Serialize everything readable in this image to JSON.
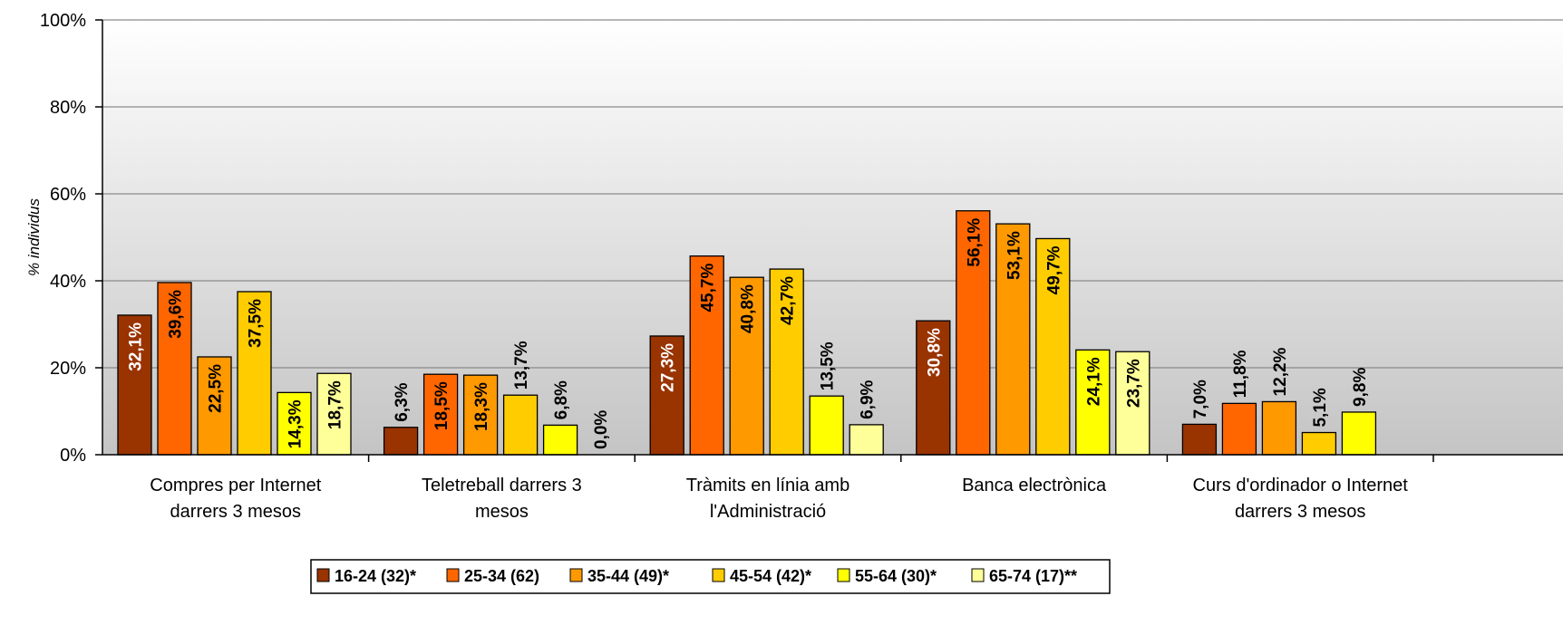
{
  "chart_data": {
    "type": "bar",
    "ylabel": "% individus",
    "ylim": [
      0,
      100
    ],
    "y_ticks": [
      "0%",
      "20%",
      "40%",
      "60%",
      "80%",
      "100%"
    ],
    "grid": true,
    "legend_position": "bottom",
    "categories": [
      [
        "Compres per Internet",
        "darrers 3 mesos"
      ],
      [
        "Teletreball darrers 3",
        "mesos"
      ],
      [
        "Tràmits en línia amb",
        "l'Administració"
      ],
      [
        "Banca electrònica"
      ],
      [
        "Curs d'ordinador o Internet",
        "darrers 3 mesos"
      ]
    ],
    "series": [
      {
        "name": "16-24 (32)*",
        "color": "#993300",
        "label_color": "#ffffff",
        "values": [
          32.1,
          6.3,
          27.3,
          30.8,
          7.0
        ],
        "labels": [
          "32,1%",
          "6,3%",
          "27,3%",
          "30,8%",
          "7,0%"
        ]
      },
      {
        "name": "25-34 (62)",
        "color": "#ff6600",
        "label_color": "#000000",
        "values": [
          39.6,
          18.5,
          45.7,
          56.1,
          11.8
        ],
        "labels": [
          "39,6%",
          "18,5%",
          "45,7%",
          "56,1%",
          "11,8%"
        ]
      },
      {
        "name": "35-44 (49)*",
        "color": "#ff9900",
        "label_color": "#000000",
        "values": [
          22.5,
          18.3,
          40.8,
          53.1,
          12.2
        ],
        "labels": [
          "22,5%",
          "18,3%",
          "40,8%",
          "53,1%",
          "12,2%"
        ]
      },
      {
        "name": "45-54 (42)*",
        "color": "#ffcc00",
        "label_color": "#000000",
        "values": [
          37.5,
          13.7,
          42.7,
          49.7,
          5.1
        ],
        "labels": [
          "37,5%",
          "13,7%",
          "42,7%",
          "49,7%",
          "5,1%"
        ]
      },
      {
        "name": "55-64 (30)*",
        "color": "#ffff00",
        "label_color": "#000000",
        "values": [
          14.3,
          6.8,
          13.5,
          24.1,
          9.8
        ],
        "labels": [
          "14,3%",
          "6,8%",
          "13,5%",
          "24,1%",
          "9,8%"
        ]
      },
      {
        "name": "65-74 (17)**",
        "color": "#ffff99",
        "label_color": "#000000",
        "values": [
          18.7,
          0.0,
          6.9,
          23.7,
          null
        ],
        "labels": [
          "18,7%",
          "0,0%",
          "6,9%",
          "23,7%",
          ""
        ]
      }
    ]
  }
}
